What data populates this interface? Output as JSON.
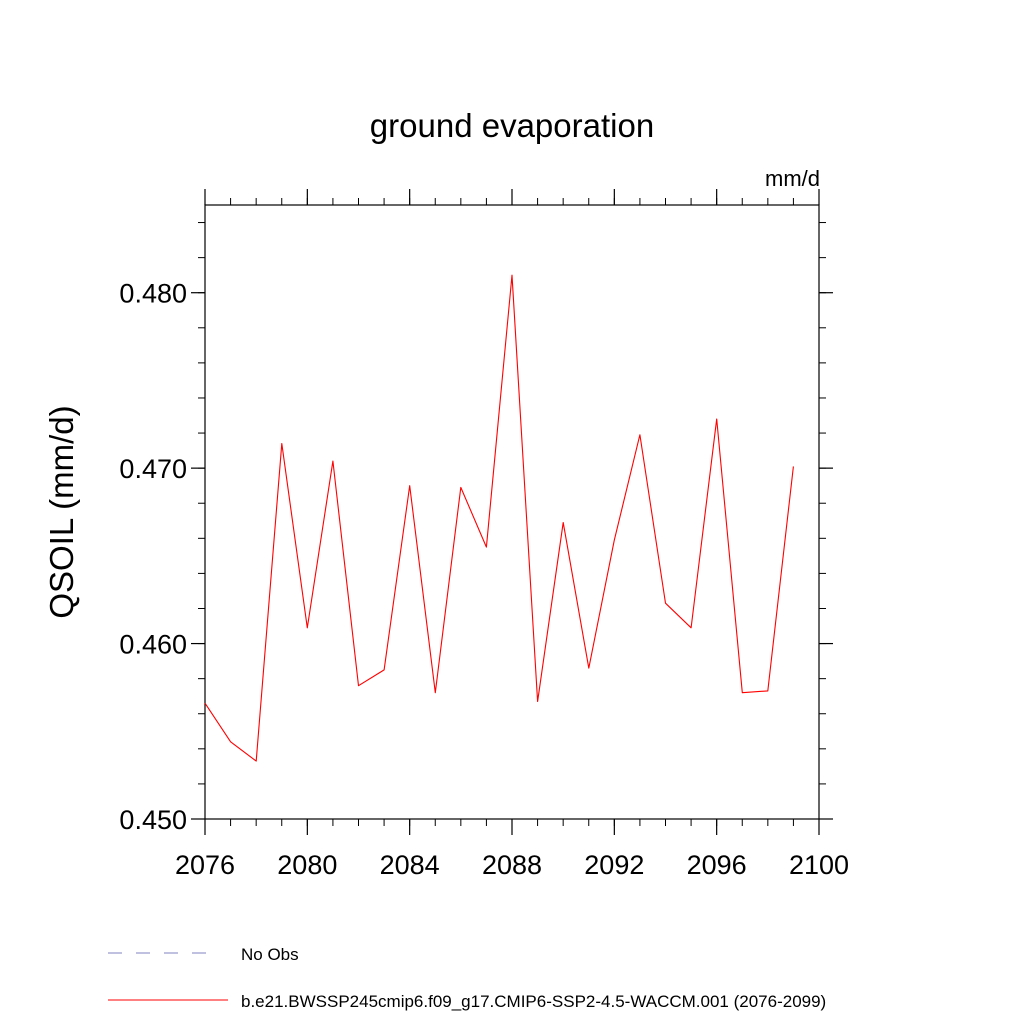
{
  "chart_data": {
    "type": "line",
    "title": "ground evaporation",
    "units_label": "mm/d",
    "ylabel": "QSOIL  (mm/d)",
    "xlabel": "",
    "xlim": [
      2076,
      2100
    ],
    "ylim": [
      0.45,
      0.485
    ],
    "x_ticks": [
      2076,
      2080,
      2084,
      2088,
      2092,
      2096,
      2100
    ],
    "x_tick_labels": [
      "2076",
      "2080",
      "2084",
      "2088",
      "2092",
      "2096",
      "2100"
    ],
    "x_minor_step": 1,
    "y_ticks": [
      0.45,
      0.46,
      0.47,
      0.48
    ],
    "y_tick_labels": [
      "0.450",
      "0.460",
      "0.470",
      "0.480"
    ],
    "y_minor_step": 0.002,
    "grid": false,
    "series": [
      {
        "name": "b.e21.BWSSP245cmip6.f09_g17.CMIP6-SSP2-4.5-WACCM.001 (2076-2099)",
        "color": "#ff0000",
        "x": [
          2076,
          2077,
          2078,
          2079,
          2080,
          2081,
          2082,
          2083,
          2084,
          2085,
          2086,
          2087,
          2088,
          2089,
          2090,
          2091,
          2092,
          2093,
          2094,
          2095,
          2096,
          2097,
          2098,
          2099
        ],
        "values": [
          0.4566,
          0.4544,
          0.4533,
          0.4714,
          0.4609,
          0.4704,
          0.4576,
          0.4585,
          0.469,
          0.4572,
          0.4689,
          0.4655,
          0.481,
          0.4567,
          0.4669,
          0.4586,
          0.4659,
          0.4719,
          0.4623,
          0.4609,
          0.4728,
          0.4572,
          0.4573,
          0.4701
        ]
      }
    ],
    "legend": [
      {
        "label": "No Obs",
        "color": "#8080c0",
        "style": "dashed"
      },
      {
        "label": "b.e21.BWSSP245cmip6.f09_g17.CMIP6-SSP2-4.5-WACCM.001 (2076-2099)",
        "color": "#ff0000",
        "style": "solid"
      }
    ],
    "legend_position": "bottom-left"
  }
}
